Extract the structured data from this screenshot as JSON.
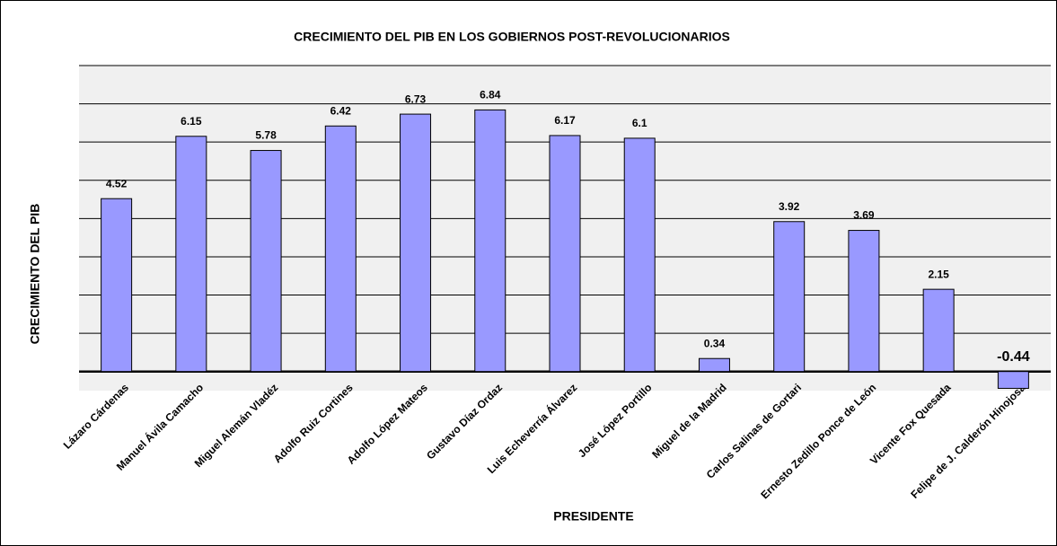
{
  "chart_data": {
    "type": "bar",
    "title": "CRECIMIENTO DEL PIB EN LOS GOBIERNOS POST-REVOLUCIONARIOS",
    "x_label": "PRESIDENTE",
    "y_label": "CRECIMIENTO DEL PIB",
    "categories": [
      "Lázaro Cárdenas",
      "Manuel Ávila Camacho",
      "Miguel Alemán Vladéz",
      "Adolfo Ruiz Cortines",
      "Adolfo López Mateos",
      "Gustavo Díaz Ordaz",
      "Luis Echeverría Álvarez",
      "José López Portillo",
      "Miguel de la Madrid",
      "Carlos Salinas de Gortari",
      "Ernesto Zedillo Ponce de León",
      "Vicente Fox Quesada",
      "Felipe de J. Calderón Hinojosa"
    ],
    "values": [
      4.52,
      6.15,
      5.78,
      6.42,
      6.73,
      6.84,
      6.17,
      6.1,
      0.34,
      3.92,
      3.69,
      2.15,
      -0.44
    ],
    "color": "#9999ff",
    "ylim": [
      -0.5,
      8
    ],
    "yticks": [
      0,
      1,
      2,
      3,
      4,
      5,
      6,
      7,
      8
    ],
    "grid": true
  }
}
